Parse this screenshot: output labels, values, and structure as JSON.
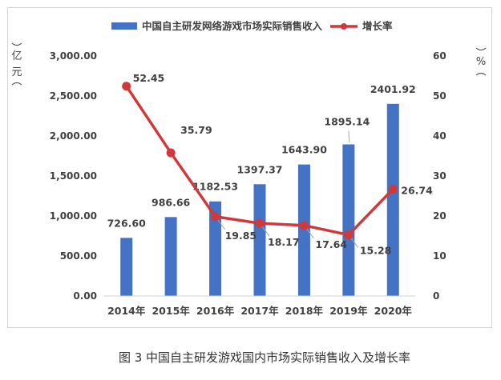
{
  "colors": {
    "bar": "#4472C4",
    "line": "#D0393B",
    "leader": "#a6a6a6"
  },
  "caption": "图 3  中国自主研发游戏国内市场实际销售收入及增长率",
  "chart_data": {
    "type": "bar",
    "categories": [
      "2014年",
      "2015年",
      "2016年",
      "2017年",
      "2018年",
      "2019年",
      "2020年"
    ],
    "series": [
      {
        "name": "中国自主研发网络游戏市场实际销售收入",
        "type": "bar",
        "axis": "left",
        "values": [
          726.6,
          986.66,
          1182.53,
          1397.37,
          1643.9,
          1895.14,
          2401.92
        ],
        "labels": [
          "726.60",
          "986.66",
          "1182.53",
          "1397.37",
          "1643.90",
          "1895.14",
          "2401.92"
        ]
      },
      {
        "name": "增长率",
        "type": "line",
        "axis": "right",
        "values": [
          52.45,
          35.79,
          19.85,
          18.17,
          17.64,
          15.28,
          26.74
        ],
        "labels": [
          "52.45",
          "35.79",
          "19.85",
          "18.17",
          "17.64",
          "15.28",
          "26.74"
        ]
      }
    ],
    "y_left": {
      "unit": [
        "亿",
        "元"
      ],
      "range": [
        0,
        3000
      ],
      "ticks": [
        "0.00",
        "500.00",
        "1,000.00",
        "1,500.00",
        "2,000.00",
        "2,500.00",
        "3,000.00"
      ]
    },
    "y_right": {
      "unit": [
        "%"
      ],
      "range": [
        0,
        60
      ],
      "ticks": [
        "0",
        "10",
        "20",
        "30",
        "40",
        "50",
        "60"
      ]
    },
    "grid": false,
    "legend_position": "top"
  }
}
